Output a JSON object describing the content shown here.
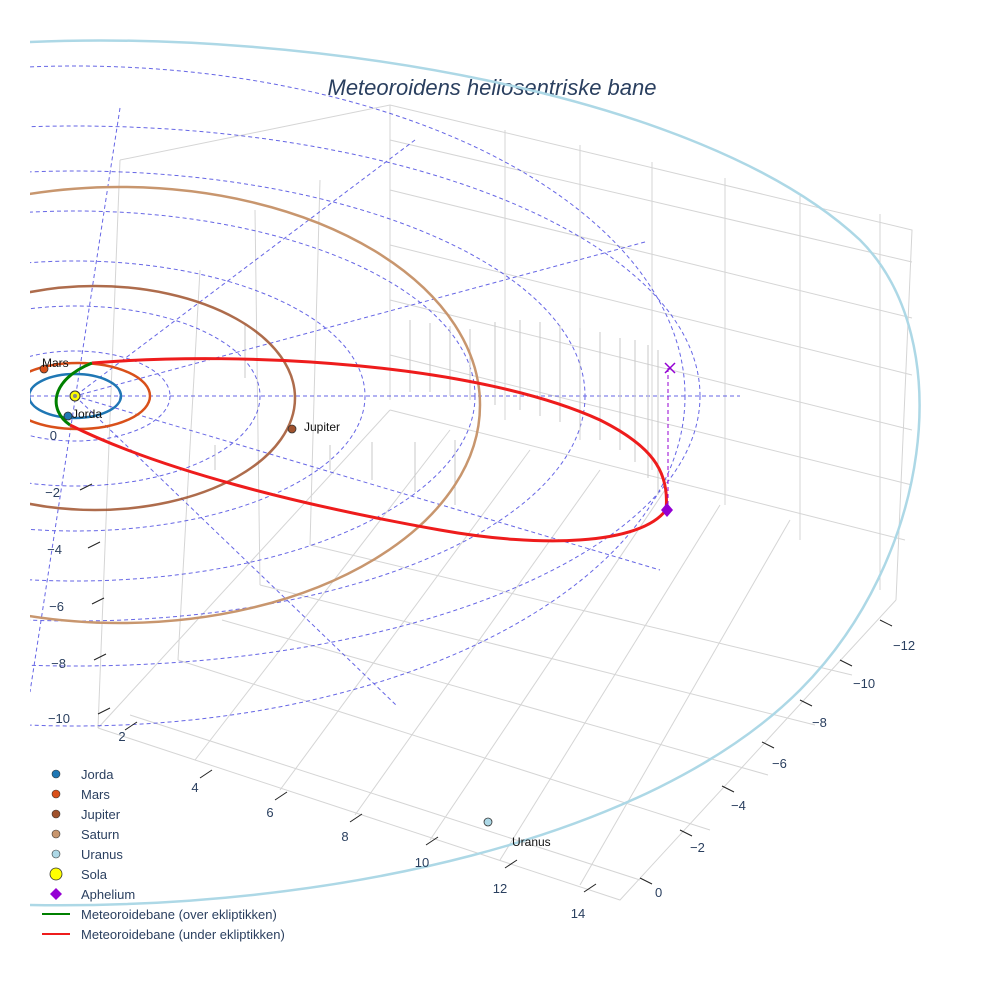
{
  "chart_data": {
    "type": "scatter3d",
    "title": "Meteoroidens heliosentriske bane",
    "axes": {
      "x_ticks": [
        "2",
        "4",
        "6",
        "8",
        "10",
        "12",
        "14"
      ],
      "y_ticks": [
        "−12",
        "−10",
        "−8",
        "−6",
        "−4",
        "−2",
        "0"
      ],
      "z_ticks": [
        "0",
        "−2",
        "−4",
        "−6",
        "−8",
        "−10"
      ]
    },
    "planets": [
      {
        "name": "Jorda",
        "color": "#1f77b4"
      },
      {
        "name": "Mars",
        "color": "#d9501a"
      },
      {
        "name": "Jupiter",
        "color": "#a0522d"
      },
      {
        "name": "Saturn",
        "color": "#c8966e"
      },
      {
        "name": "Uranus",
        "color": "#add8e6"
      }
    ],
    "sun": {
      "name": "Sola",
      "color": "#ffff00"
    },
    "aphelium": {
      "name": "Aphelium",
      "color": "#9400d3"
    },
    "orbit_segments": [
      {
        "name": "Meteoroidebane (over ekliptikken)",
        "color": "#008000"
      },
      {
        "name": "Meteoroidebane (under ekliptikken)",
        "color": "#ee1c1c"
      }
    ],
    "legend": [
      {
        "label": "Jorda",
        "kind": "dot",
        "color": "#1f77b4"
      },
      {
        "label": "Mars",
        "kind": "dot",
        "color": "#d9501a"
      },
      {
        "label": "Jupiter",
        "kind": "dot",
        "color": "#a0522d"
      },
      {
        "label": "Saturn",
        "kind": "dot",
        "color": "#c8966e"
      },
      {
        "label": "Uranus",
        "kind": "dot",
        "color": "#add8e6"
      },
      {
        "label": "Sola",
        "kind": "bigdot",
        "color": "#ffff00"
      },
      {
        "label": "Aphelium",
        "kind": "diamond",
        "color": "#9400d3"
      },
      {
        "label": "Meteoroidebane (over ekliptikken)",
        "kind": "line",
        "color": "#008000"
      },
      {
        "label": "Meteoroidebane (under ekliptikken)",
        "kind": "line",
        "color": "#ee1c1c"
      }
    ],
    "grid": true,
    "legend_position": "bottom-left"
  }
}
